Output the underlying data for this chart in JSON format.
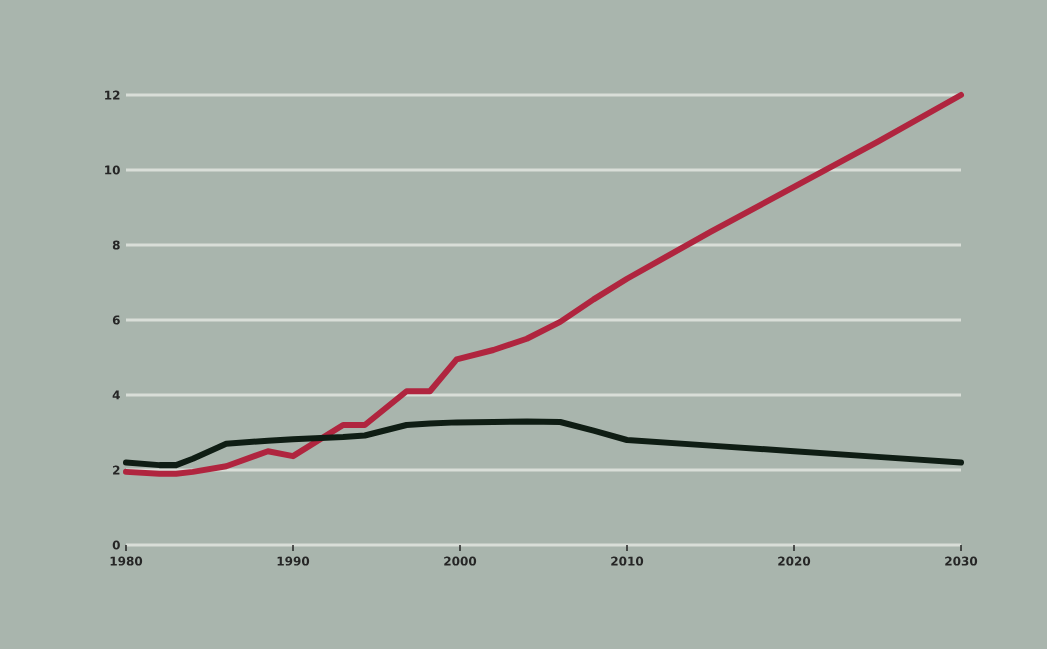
{
  "chart_data": {
    "type": "line",
    "x": [
      1980,
      1982,
      1983,
      1984,
      1986,
      1988.5,
      1990,
      1993,
      1994.3,
      1996.8,
      1998.2,
      1999.8,
      2002,
      2004,
      2006,
      2008,
      2010,
      2015,
      2020,
      2025,
      2030
    ],
    "series": [
      {
        "color": "#b0253f",
        "values": [
          1.95,
          1.9,
          1.9,
          1.95,
          2.1,
          2.5,
          2.37,
          3.2,
          3.2,
          4.1,
          4.1,
          4.95,
          5.2,
          5.5,
          5.95,
          6.55,
          7.1,
          8.35,
          9.55,
          10.75,
          12
        ]
      },
      {
        "color": "#0f1d14",
        "values": [
          2.2,
          2.13,
          2.13,
          2.3,
          2.7,
          2.78,
          2.82,
          2.88,
          2.92,
          3.2,
          3.24,
          3.27,
          3.28,
          3.29,
          3.28,
          3.05,
          2.8,
          2.65,
          2.5,
          2.35,
          2.2
        ]
      }
    ],
    "xlim": [
      1980,
      2030
    ],
    "ylim": [
      0,
      12
    ],
    "xticks": [
      1980,
      1990,
      2000,
      2010,
      2020,
      2030
    ],
    "yticks": [
      0,
      2,
      4,
      6,
      8,
      10,
      12
    ],
    "grid": "y",
    "marker": "none",
    "line_style": "solid"
  }
}
